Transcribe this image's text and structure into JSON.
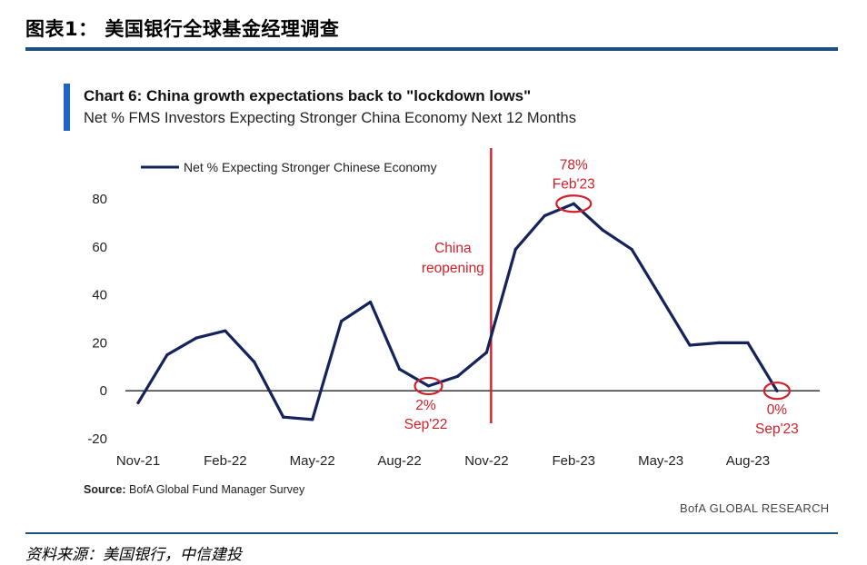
{
  "figure_title": "图表1： 美国银行全球基金经理调查",
  "footer_source": "资料来源：美国银行，中信建投",
  "colors": {
    "line": "#14235c",
    "annotation": "#d21f2a",
    "accent_bar": "#1e64c8",
    "rule": "#1c4f7c"
  },
  "chart_data": {
    "type": "line",
    "title": "Chart 6: China growth expectations back to \"lockdown lows\"",
    "subtitle": "Net % FMS Investors Expecting Stronger China Economy Next 12 Months",
    "legend": "top-left",
    "grid": false,
    "ylim": [
      -20,
      80
    ],
    "yticks": [
      "80",
      "60",
      "40",
      "20",
      "0",
      "-20"
    ],
    "xticks": [
      "Nov-21",
      "Feb-22",
      "May-22",
      "Aug-22",
      "Nov-22",
      "Feb-23",
      "May-23",
      "Aug-23"
    ],
    "series": [
      {
        "name": "Net % Expecting Stronger Chinese Economy",
        "x": [
          "Nov-21",
          "Dec-21",
          "Jan-22",
          "Feb-22",
          "Mar-22",
          "Apr-22",
          "May-22",
          "Jun-22",
          "Jul-22",
          "Aug-22",
          "Sep-22",
          "Oct-22",
          "Nov-22",
          "Dec-22",
          "Jan-23",
          "Feb-23",
          "Mar-23",
          "Apr-23",
          "May-23",
          "Jun-23",
          "Jul-23",
          "Aug-23",
          "Sep-23"
        ],
        "values": [
          -5,
          15,
          22,
          25,
          12,
          -11,
          -12,
          29,
          37,
          9,
          2,
          6,
          16,
          59,
          73,
          78,
          67,
          59,
          39,
          19,
          20,
          20,
          0
        ]
      }
    ],
    "annotations": [
      {
        "text_lines": [
          "China",
          "reopening"
        ],
        "type": "vertical-line",
        "at": "Dec-22"
      },
      {
        "text_lines": [
          "2%",
          "Sep'22"
        ],
        "type": "circle",
        "at": "Sep-22",
        "value": 2
      },
      {
        "text_lines": [
          "78%",
          "Feb'23"
        ],
        "type": "circle",
        "at": "Feb-23",
        "value": 78
      },
      {
        "text_lines": [
          "0%",
          "Sep'23"
        ],
        "type": "circle",
        "at": "Sep-23",
        "value": 0
      }
    ],
    "source_label": "Source:",
    "source": "BofA Global Fund Manager Survey",
    "brand": "BofA GLOBAL RESEARCH"
  }
}
